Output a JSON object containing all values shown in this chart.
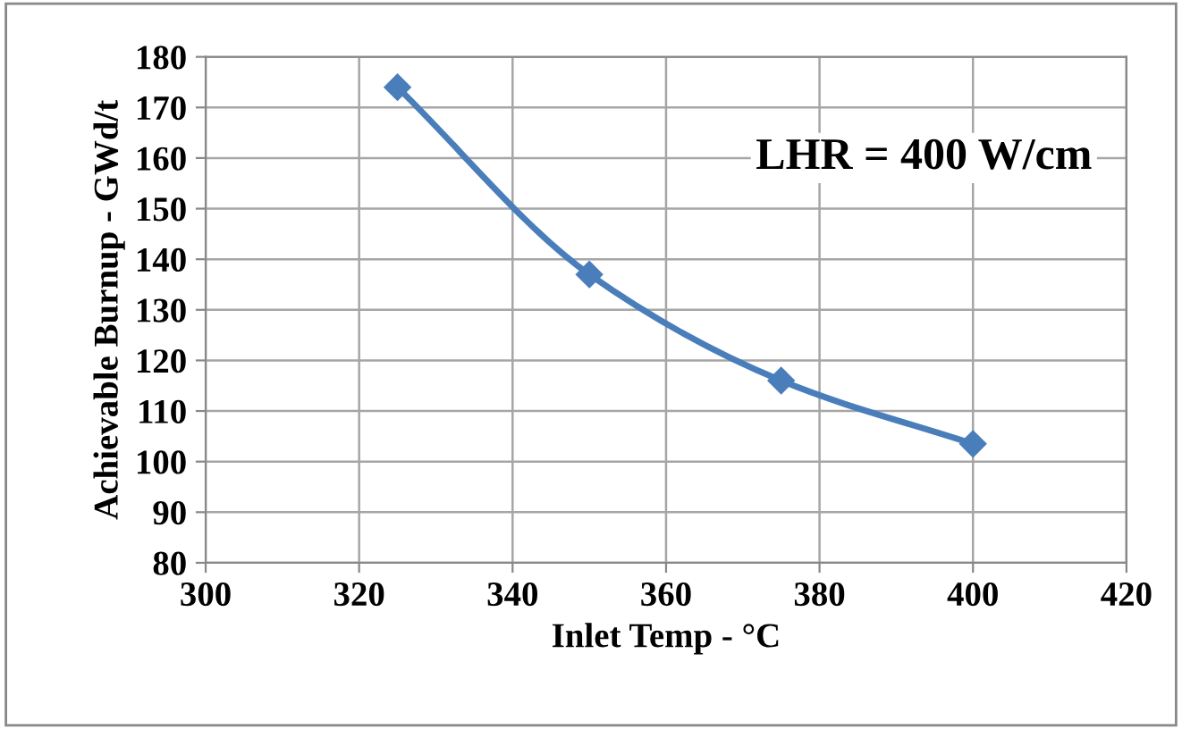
{
  "chart_data": {
    "type": "line",
    "xlabel": "Inlet Temp - °C",
    "ylabel": "Achievable Burnup - GWd/t",
    "x": [
      325,
      350,
      375,
      400
    ],
    "series": [
      {
        "color": "#4a7ebb",
        "values": [
          174,
          137,
          116,
          103.5
        ]
      }
    ],
    "xlim": [
      300,
      420
    ],
    "xticks": [
      300,
      320,
      340,
      360,
      380,
      400,
      420
    ],
    "ylim": [
      80,
      180
    ],
    "yticks": [
      80,
      90,
      100,
      110,
      120,
      130,
      140,
      150,
      160,
      170,
      180
    ],
    "grid": true,
    "marker": "diamond",
    "line_style": "solid",
    "annotations": [
      "LHR = 400 W/cm"
    ]
  }
}
